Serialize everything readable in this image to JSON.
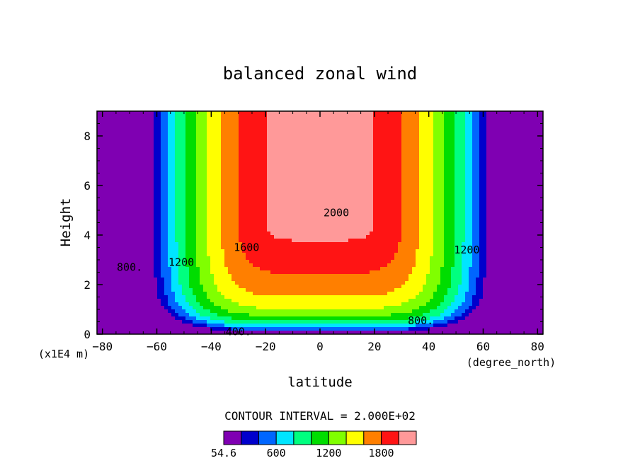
{
  "chart_data": {
    "type": "contour",
    "title": "balanced zonal wind",
    "xlabel": "latitude",
    "x_units": "(degree_north)",
    "ylabel": "Height",
    "y_units": "(x1E4 m)",
    "xlim": [
      -82,
      82
    ],
    "ylim": [
      0,
      9
    ],
    "x_ticks": [
      -80,
      -60,
      -40,
      -20,
      0,
      20,
      40,
      60,
      80
    ],
    "y_ticks": [
      0,
      2,
      4,
      6,
      8
    ],
    "contour_interval_text": "CONTOUR INTERVAL = 2.000E+02",
    "contour_interval": 200,
    "min_value": 54.6,
    "levels": [
      200,
      400,
      600,
      800,
      1000,
      1200,
      1400,
      1600,
      1800,
      2000
    ],
    "colors": [
      "#7f00b2",
      "#0000cc",
      "#0066ff",
      "#00e5ff",
      "#00ff7f",
      "#00dd00",
      "#80ff00",
      "#ffff00",
      "#ff7f00",
      "#ff1414",
      "#ff9999"
    ],
    "contour_labels": [
      {
        "text": "400.",
        "lat": -30,
        "h": 0.1
      },
      {
        "text": "800.",
        "lat": -70,
        "h": 2.7
      },
      {
        "text": "1200",
        "lat": -51,
        "h": 2.9
      },
      {
        "text": "1600",
        "lat": -27,
        "h": 3.5
      },
      {
        "text": "2000",
        "lat": 6,
        "h": 4.9
      },
      {
        "text": "800.",
        "lat": 37,
        "h": 0.55
      },
      {
        "text": "1200",
        "lat": 54,
        "h": 3.4
      }
    ],
    "colorbar_labels": [
      "54.6",
      "600",
      "1200",
      "1800"
    ]
  }
}
